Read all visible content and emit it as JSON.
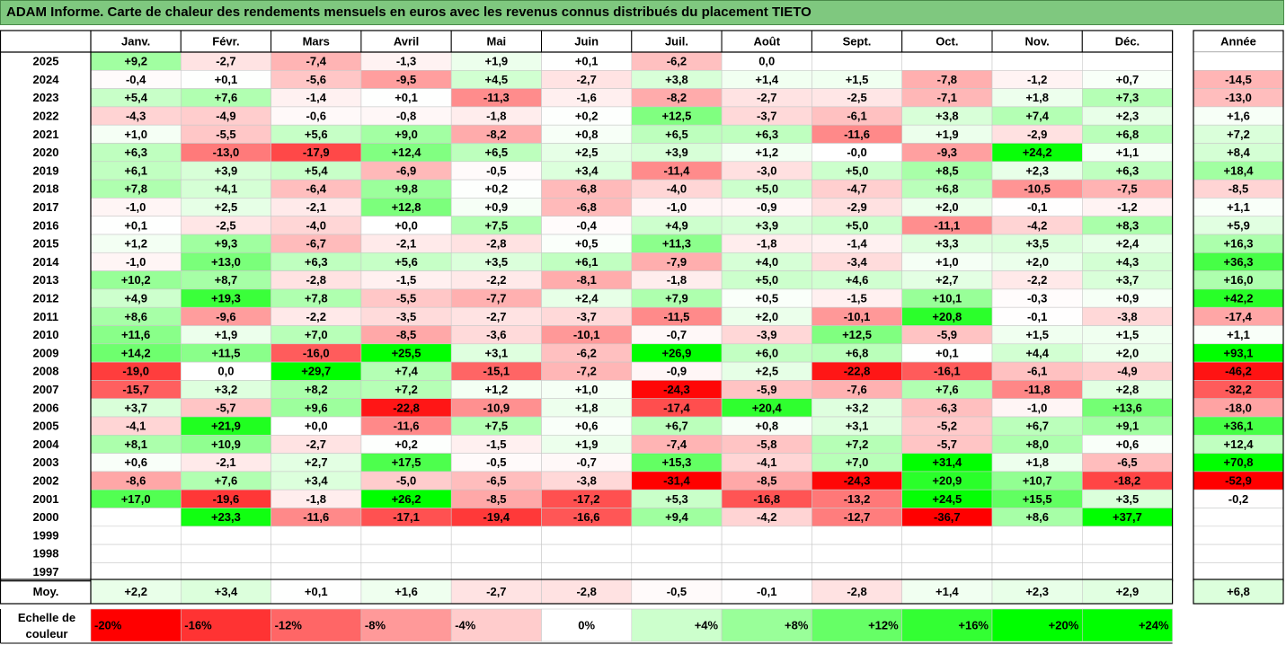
{
  "title": "ADAM Informe. Carte de chaleur des rendements mensuels en euros avec les revenus connus distribués du placement TIETO",
  "legend_label": "Echelle de couleur",
  "average_label": "Moy.",
  "colors": {
    "title_bg": "#7fc87f",
    "max_green": "#00ff00",
    "max_red": "#ff0000",
    "neutral": "#ffffff"
  },
  "chart_data": {
    "type": "heatmap",
    "months": [
      "Janv.",
      "Févr.",
      "Mars",
      "Avril",
      "Mai",
      "Juin",
      "Juil.",
      "Août",
      "Sept.",
      "Oct.",
      "Nov.",
      "Déc."
    ],
    "year_header": "Année",
    "rows": [
      {
        "year": "2025",
        "values": [
          "+9,2",
          "-2,7",
          "-7,4",
          "-1,3",
          "+1,9",
          "+0,1",
          "-6,2",
          "0,0",
          "",
          "",
          "",
          ""
        ],
        "annual": ""
      },
      {
        "year": "2024",
        "values": [
          "-0,4",
          "+0,1",
          "-5,6",
          "-9,5",
          "+4,5",
          "-2,7",
          "+3,8",
          "+1,4",
          "+1,5",
          "-7,8",
          "-1,2",
          "+0,7"
        ],
        "annual": "-14,5"
      },
      {
        "year": "2023",
        "values": [
          "+5,4",
          "+7,6",
          "-1,4",
          "+0,1",
          "-11,3",
          "-1,6",
          "-8,2",
          "-2,7",
          "-2,5",
          "-7,1",
          "+1,8",
          "+7,3"
        ],
        "annual": "-13,0"
      },
      {
        "year": "2022",
        "values": [
          "-4,3",
          "-4,9",
          "-0,6",
          "-0,8",
          "-1,8",
          "+0,2",
          "+12,5",
          "-3,7",
          "-6,1",
          "+3,8",
          "+7,4",
          "+2,3"
        ],
        "annual": "+1,6"
      },
      {
        "year": "2021",
        "values": [
          "+1,0",
          "-5,5",
          "+5,6",
          "+9,0",
          "-8,2",
          "+0,8",
          "+6,5",
          "+6,3",
          "-11,6",
          "+1,9",
          "-2,9",
          "+6,8"
        ],
        "annual": "+7,2"
      },
      {
        "year": "2020",
        "values": [
          "+6,3",
          "-13,0",
          "-17,9",
          "+12,4",
          "+6,5",
          "+2,5",
          "+3,9",
          "+1,2",
          "-0,0",
          "-9,3",
          "+24,2",
          "+1,1"
        ],
        "annual": "+8,4"
      },
      {
        "year": "2019",
        "values": [
          "+6,1",
          "+3,9",
          "+5,4",
          "-6,9",
          "-0,5",
          "+3,4",
          "-11,4",
          "-3,0",
          "+5,0",
          "+8,5",
          "+2,3",
          "+6,3"
        ],
        "annual": "+18,4"
      },
      {
        "year": "2018",
        "values": [
          "+7,8",
          "+4,1",
          "-6,4",
          "+9,8",
          "+0,2",
          "-6,8",
          "-4,0",
          "+5,0",
          "-4,7",
          "+6,8",
          "-10,5",
          "-7,5"
        ],
        "annual": "-8,5"
      },
      {
        "year": "2017",
        "values": [
          "-1,0",
          "+2,5",
          "-2,1",
          "+12,8",
          "+0,9",
          "-6,8",
          "-1,0",
          "-0,9",
          "-2,9",
          "+2,0",
          "-0,1",
          "-1,2"
        ],
        "annual": "+1,1"
      },
      {
        "year": "2016",
        "values": [
          "+0,1",
          "-2,5",
          "-4,0",
          "+0,0",
          "+7,5",
          "-0,4",
          "+4,9",
          "+3,9",
          "+5,0",
          "-11,1",
          "-4,2",
          "+8,3"
        ],
        "annual": "+5,9"
      },
      {
        "year": "2015",
        "values": [
          "+1,2",
          "+9,3",
          "-6,7",
          "-2,1",
          "-2,8",
          "+0,5",
          "+11,3",
          "-1,8",
          "-1,4",
          "+3,3",
          "+3,5",
          "+2,4"
        ],
        "annual": "+16,3"
      },
      {
        "year": "2014",
        "values": [
          "-1,0",
          "+13,0",
          "+6,3",
          "+5,6",
          "+3,5",
          "+6,1",
          "-7,9",
          "+4,0",
          "-3,4",
          "+1,0",
          "+2,0",
          "+4,3"
        ],
        "annual": "+36,3"
      },
      {
        "year": "2013",
        "values": [
          "+10,2",
          "+8,7",
          "-2,8",
          "-1,5",
          "-2,2",
          "-8,1",
          "-1,8",
          "+5,0",
          "+4,6",
          "+2,7",
          "-2,2",
          "+3,7"
        ],
        "annual": "+16,0"
      },
      {
        "year": "2012",
        "values": [
          "+4,9",
          "+19,3",
          "+7,8",
          "-5,5",
          "-7,7",
          "+2,4",
          "+7,9",
          "+0,5",
          "-1,5",
          "+10,1",
          "-0,3",
          "+0,9"
        ],
        "annual": "+42,2"
      },
      {
        "year": "2011",
        "values": [
          "+8,6",
          "-9,6",
          "-2,2",
          "-3,5",
          "-2,7",
          "-3,7",
          "-11,5",
          "+2,0",
          "-10,1",
          "+20,8",
          "-0,1",
          "-3,8"
        ],
        "annual": "-17,4"
      },
      {
        "year": "2010",
        "values": [
          "+11,6",
          "+1,9",
          "+7,0",
          "-8,5",
          "-3,6",
          "-10,1",
          "-0,7",
          "-3,9",
          "+12,5",
          "-5,9",
          "+1,5",
          "+1,5"
        ],
        "annual": "+1,1"
      },
      {
        "year": "2009",
        "values": [
          "+14,2",
          "+11,5",
          "-16,0",
          "+25,5",
          "+3,1",
          "-6,2",
          "+26,9",
          "+6,0",
          "+6,8",
          "+0,1",
          "+4,4",
          "+2,0"
        ],
        "annual": "+93,1"
      },
      {
        "year": "2008",
        "values": [
          "-19,0",
          "0,0",
          "+29,7",
          "+7,4",
          "-15,1",
          "-7,2",
          "-0,9",
          "+2,5",
          "-22,8",
          "-16,1",
          "-6,1",
          "-4,9"
        ],
        "annual": "-46,2"
      },
      {
        "year": "2007",
        "values": [
          "-15,7",
          "+3,2",
          "+8,2",
          "+7,2",
          "+1,2",
          "+1,0",
          "-24,3",
          "-5,9",
          "-7,6",
          "+7,6",
          "-11,8",
          "+2,8"
        ],
        "annual": "-32,2"
      },
      {
        "year": "2006",
        "values": [
          "+3,7",
          "-5,7",
          "+9,6",
          "-22,8",
          "-10,9",
          "+1,8",
          "-17,4",
          "+20,4",
          "+3,2",
          "-6,3",
          "-1,0",
          "+13,6"
        ],
        "annual": "-18,0"
      },
      {
        "year": "2005",
        "values": [
          "-4,1",
          "+21,9",
          "+0,0",
          "-11,6",
          "+7,5",
          "+0,6",
          "+6,7",
          "+0,8",
          "+3,1",
          "-5,2",
          "+6,7",
          "+9,1"
        ],
        "annual": "+36,1"
      },
      {
        "year": "2004",
        "values": [
          "+8,1",
          "+10,9",
          "-2,7",
          "+0,2",
          "-1,5",
          "+1,9",
          "-7,4",
          "-5,8",
          "+7,2",
          "-5,7",
          "+8,0",
          "+0,6"
        ],
        "annual": "+12,4"
      },
      {
        "year": "2003",
        "values": [
          "+0,6",
          "-2,1",
          "+2,7",
          "+17,5",
          "-0,5",
          "-0,7",
          "+15,3",
          "-4,1",
          "+7,0",
          "+31,4",
          "+1,8",
          "-6,5"
        ],
        "annual": "+70,8"
      },
      {
        "year": "2002",
        "values": [
          "-8,6",
          "+7,6",
          "+3,4",
          "-5,0",
          "-6,5",
          "-3,8",
          "-31,4",
          "-8,5",
          "-24,3",
          "+20,9",
          "+10,7",
          "-18,2"
        ],
        "annual": "-52,9"
      },
      {
        "year": "2001",
        "values": [
          "+17,0",
          "-19,6",
          "-1,8",
          "+26,2",
          "-8,5",
          "-17,2",
          "+5,3",
          "-16,8",
          "-13,2",
          "+24,5",
          "+15,5",
          "+3,5"
        ],
        "annual": "-0,2"
      },
      {
        "year": "2000",
        "values": [
          "",
          "+23,3",
          "-11,6",
          "-17,1",
          "-19,4",
          "-16,6",
          "+9,4",
          "-4,2",
          "-12,7",
          "-36,7",
          "+8,6",
          "+37,7"
        ],
        "annual": ""
      },
      {
        "year": "1999",
        "values": [
          "",
          "",
          "",
          "",
          "",
          "",
          "",
          "",
          "",
          "",
          "",
          ""
        ],
        "annual": ""
      },
      {
        "year": "1998",
        "values": [
          "",
          "",
          "",
          "",
          "",
          "",
          "",
          "",
          "",
          "",
          "",
          ""
        ],
        "annual": ""
      },
      {
        "year": "1997",
        "values": [
          "",
          "",
          "",
          "",
          "",
          "",
          "",
          "",
          "",
          "",
          "",
          ""
        ],
        "annual": ""
      }
    ],
    "averages": [
      "+2,2",
      "+3,4",
      "+0,1",
      "+1,6",
      "-2,7",
      "-2,8",
      "-0,5",
      "-0,1",
      "-2,8",
      "+1,4",
      "+2,3",
      "+2,9"
    ],
    "average_annual": "+6,8",
    "scale": [
      {
        "label": "-20%",
        "value": -20
      },
      {
        "label": "-16%",
        "value": -16
      },
      {
        "label": "-12%",
        "value": -12
      },
      {
        "label": "-8%",
        "value": -8
      },
      {
        "label": "-4%",
        "value": -4
      },
      {
        "label": "0%",
        "value": 0
      },
      {
        "label": "+4%",
        "value": 4
      },
      {
        "label": "+8%",
        "value": 8
      },
      {
        "label": "+12%",
        "value": 12
      },
      {
        "label": "+16%",
        "value": 16
      },
      {
        "label": "+20%",
        "value": 20
      },
      {
        "label": "+24%",
        "value": 24
      }
    ]
  }
}
